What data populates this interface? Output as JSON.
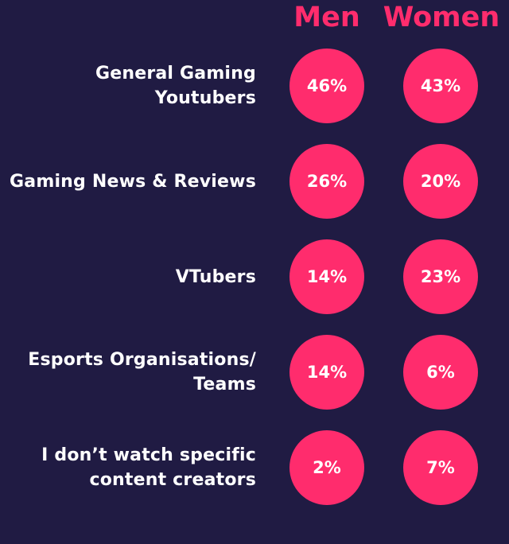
{
  "colors": {
    "background": "#201b43",
    "accent": "#ff2c6d",
    "text": "#ffffff"
  },
  "chart_data": {
    "type": "table",
    "columns": [
      "Men",
      "Women"
    ],
    "rows": [
      {
        "label": "General Gaming Youtubers",
        "men": "46%",
        "women": "43%"
      },
      {
        "label": "Gaming News & Reviews",
        "men": "26%",
        "women": "20%"
      },
      {
        "label": "VTubers",
        "men": "14%",
        "women": "23%"
      },
      {
        "label": "Esports Organisations/ Teams",
        "men": "14%",
        "women": "6%"
      },
      {
        "label": "I don’t watch specific content creators",
        "men": "2%",
        "women": "7%"
      }
    ]
  }
}
